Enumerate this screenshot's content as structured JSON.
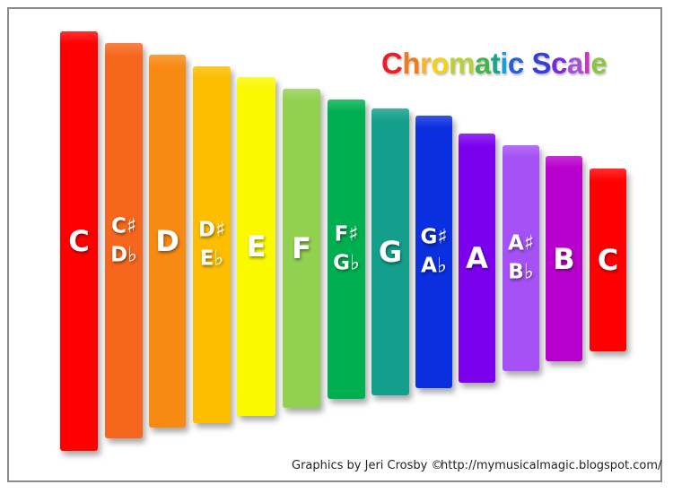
{
  "title": {
    "letters": [
      {
        "char": "C",
        "color": "#e8202a"
      },
      {
        "char": "h",
        "color": "#f07a1e"
      },
      {
        "char": "r",
        "color": "#f6b52a"
      },
      {
        "char": "o",
        "color": "#f2d31a"
      },
      {
        "char": "m",
        "color": "#b8d03a"
      },
      {
        "char": "a",
        "color": "#3fb54a"
      },
      {
        "char": "t",
        "color": "#1aa58a"
      },
      {
        "char": "i",
        "color": "#1b9dd9"
      },
      {
        "char": "c",
        "color": "#2a5fd6"
      },
      {
        "char": " ",
        "color": "#000000"
      },
      {
        "char": "S",
        "color": "#3a3fd4"
      },
      {
        "char": "c",
        "color": "#7b2ad6"
      },
      {
        "char": "a",
        "color": "#a44fd8"
      },
      {
        "char": "l",
        "color": "#c63ab9"
      },
      {
        "char": "e",
        "color": "#8cc63f"
      }
    ]
  },
  "bars": [
    {
      "lines": [
        "C"
      ],
      "color": "#ff0000"
    },
    {
      "lines": [
        "C♯",
        "D♭"
      ],
      "color": "#f6671d"
    },
    {
      "lines": [
        "D"
      ],
      "color": "#f78a12"
    },
    {
      "lines": [
        "D♯",
        "E♭"
      ],
      "color": "#fdbd00"
    },
    {
      "lines": [
        "E"
      ],
      "color": "#fbf900"
    },
    {
      "lines": [
        "F"
      ],
      "color": "#92d050"
    },
    {
      "lines": [
        "F♯",
        "G♭"
      ],
      "color": "#00b050"
    },
    {
      "lines": [
        "G"
      ],
      "color": "#149f8c"
    },
    {
      "lines": [
        "G♯",
        "A♭"
      ],
      "color": "#0a2fde"
    },
    {
      "lines": [
        "A"
      ],
      "color": "#7b00ee"
    },
    {
      "lines": [
        "A♯",
        "B♭"
      ],
      "color": "#a551f6"
    },
    {
      "lines": [
        "B"
      ],
      "color": "#b800cc"
    },
    {
      "lines": [
        "C"
      ],
      "color": "#ff0000"
    }
  ],
  "footer": {
    "credit": "Graphics by Jeri Crosby ©",
    "url": "http://mymusicalmagic.blogspot.com/"
  }
}
